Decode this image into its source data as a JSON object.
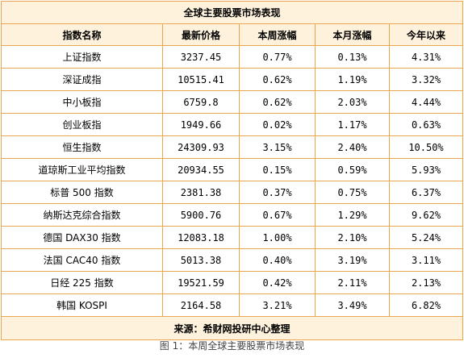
{
  "table": {
    "title": "全球主要股票市场表现",
    "headers": [
      "指数名称",
      "最新价格",
      "本周涨幅",
      "本月涨幅",
      "今年以来"
    ],
    "rows": [
      {
        "name": "上证指数",
        "price": "3237.45",
        "week": "0.77%",
        "month": "0.13%",
        "ytd": "4.31%",
        "colors": [
          "down",
          "up",
          "down",
          "up"
        ]
      },
      {
        "name": "深证成指",
        "price": "10515.41",
        "week": "0.62%",
        "month": "1.19%",
        "ytd": "3.32%",
        "colors": [
          "down",
          "up",
          "up",
          "up"
        ]
      },
      {
        "name": "中小板指",
        "price": "6759.8",
        "week": "0.62%",
        "month": "2.03%",
        "ytd": "4.44%",
        "colors": [
          "down",
          "up",
          "up",
          "up"
        ]
      },
      {
        "name": "创业板指",
        "price": "1949.66",
        "week": "0.02%",
        "month": "1.17%",
        "ytd": "0.63%",
        "colors": [
          "down",
          "down",
          "up",
          "down"
        ]
      },
      {
        "name": "恒生指数",
        "price": "24309.93",
        "week": "3.15%",
        "month": "2.40%",
        "ytd": "10.50%",
        "colors": [
          "up",
          "up",
          "up",
          "up"
        ]
      },
      {
        "name": "道琼斯工业平均指数",
        "price": "20934.55",
        "week": "0.15%",
        "month": "0.59%",
        "ytd": "5.93%",
        "colors": [
          "down",
          "up",
          "up",
          "up"
        ]
      },
      {
        "name": "标普 500 指数",
        "price": "2381.38",
        "week": "0.37%",
        "month": "0.75%",
        "ytd": "6.37%",
        "colors": [
          "down",
          "up",
          "up",
          "up"
        ]
      },
      {
        "name": "纳斯达克综合指数",
        "price": "5900.76",
        "week": "0.67%",
        "month": "1.29%",
        "ytd": "9.62%",
        "colors": [
          "up",
          "up",
          "up",
          "up"
        ]
      },
      {
        "name": "德国 DAX30 指数",
        "price": "12083.18",
        "week": "1.00%",
        "month": "2.10%",
        "ytd": "5.24%",
        "colors": [
          "up",
          "up",
          "up",
          "up"
        ]
      },
      {
        "name": "法国 CAC40 指数",
        "price": "5013.38",
        "week": "0.40%",
        "month": "3.19%",
        "ytd": "3.11%",
        "colors": [
          "up",
          "up",
          "up",
          "up"
        ]
      },
      {
        "name": "日经 225 指数",
        "price": "19521.59",
        "week": "0.42%",
        "month": "2.11%",
        "ytd": "2.13%",
        "colors": [
          "down",
          "down",
          "up",
          "up"
        ]
      },
      {
        "name": "韩国 KOSPI",
        "price": "2164.58",
        "week": "3.21%",
        "month": "3.49%",
        "ytd": "6.82%",
        "colors": [
          "up",
          "up",
          "up",
          "up"
        ]
      }
    ],
    "source": "来源：希财网投研中心整理"
  },
  "caption": "图 1：本周全球主要股票市场表现",
  "colors": {
    "up": "#d9001b",
    "down": "#129a5a",
    "border": "#e7a64f",
    "header_bg": "#fff2dc"
  }
}
